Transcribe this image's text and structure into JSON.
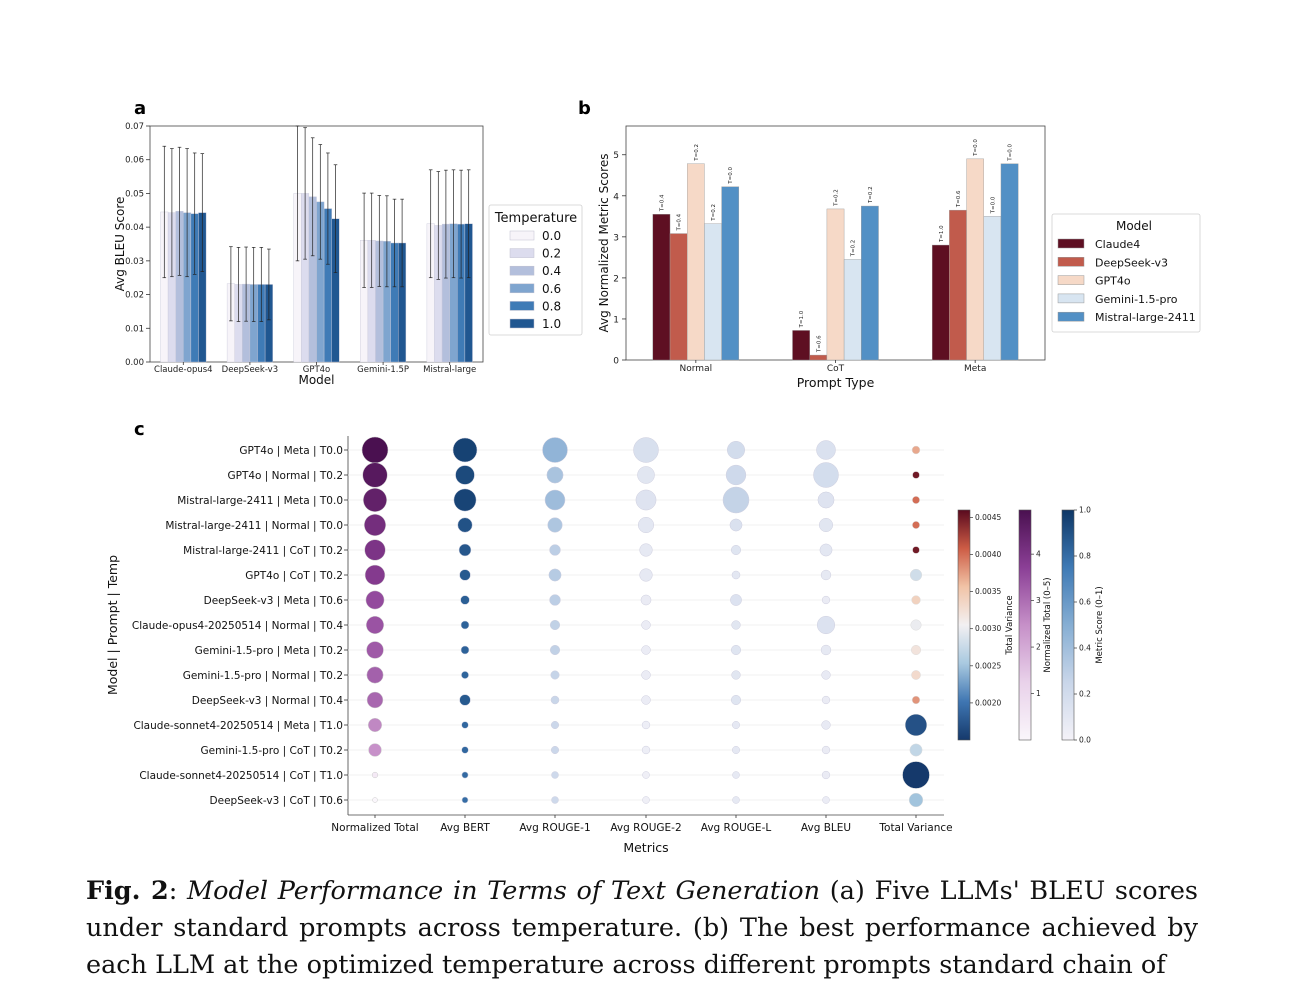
{
  "panel_labels": [
    "a",
    "b",
    "c"
  ],
  "caption": {
    "label": "Fig. 2",
    "title": "Model Performance in Terms of Text Generation",
    "text": "(a) Five LLMs' BLEU scores under standard prompts across temperature. (b) The best performance achieved by each LLM at the optimized temperature across different prompts standard chain of"
  },
  "chart_data": [
    {
      "type": "bar",
      "panel": "a",
      "xlabel": "Model",
      "ylabel": "Avg BLEU Score",
      "ylim": [
        0,
        0.07
      ],
      "yticks": [
        "0.00",
        "0.01",
        "0.02",
        "0.03",
        "0.04",
        "0.05",
        "0.06",
        "0.07"
      ],
      "categories": [
        "Claude-opus4",
        "DeepSeek-v3",
        "GPT4o",
        "Gemini-1.5P",
        "Mistral-large"
      ],
      "legend_title": "Temperature",
      "legend_position": "right",
      "series": [
        {
          "name": "0.0",
          "color": "#f7f4f9",
          "values": [
            0.0445,
            0.0232,
            0.05,
            0.0361,
            0.041
          ],
          "err": [
            0.0195,
            0.011,
            0.02,
            0.014,
            0.016
          ]
        },
        {
          "name": "0.2",
          "color": "#dcdcee",
          "values": [
            0.0443,
            0.023,
            0.05,
            0.0361,
            0.0405
          ],
          "err": [
            0.019,
            0.011,
            0.0195,
            0.014,
            0.016
          ]
        },
        {
          "name": "0.4",
          "color": "#b3bfdc",
          "values": [
            0.0447,
            0.0231,
            0.049,
            0.0359,
            0.0409
          ],
          "err": [
            0.019,
            0.011,
            0.0175,
            0.0135,
            0.016
          ]
        },
        {
          "name": "0.6",
          "color": "#7fa5cf",
          "values": [
            0.0443,
            0.023,
            0.0475,
            0.0358,
            0.041
          ],
          "err": [
            0.019,
            0.011,
            0.017,
            0.0135,
            0.016
          ]
        },
        {
          "name": "0.8",
          "color": "#3f7bb6",
          "values": [
            0.044,
            0.023,
            0.0455,
            0.0353,
            0.0409
          ],
          "err": [
            0.018,
            0.011,
            0.0165,
            0.013,
            0.016
          ]
        },
        {
          "name": "1.0",
          "color": "#205791",
          "values": [
            0.0443,
            0.023,
            0.0425,
            0.0353,
            0.041
          ],
          "err": [
            0.0175,
            0.0105,
            0.016,
            0.013,
            0.016
          ]
        }
      ]
    },
    {
      "type": "bar",
      "panel": "b",
      "xlabel": "Prompt Type",
      "ylabel": "Avg Normalized Metric Scores",
      "ylim": [
        0,
        5.7
      ],
      "yticks": [
        "0",
        "1",
        "2",
        "3",
        "4",
        "5"
      ],
      "categories": [
        "Normal",
        "CoT",
        "Meta"
      ],
      "legend_title": "Model",
      "legend_position": "right",
      "series": [
        {
          "name": "Claude4",
          "color": "#5e0f22",
          "values": [
            3.55,
            0.72,
            2.8
          ],
          "labels": [
            "T=0.4",
            "T=1.0",
            "T=1.0"
          ]
        },
        {
          "name": "DeepSeek-v3",
          "color": "#c15b4c",
          "values": [
            3.08,
            0.12,
            3.65
          ],
          "labels": [
            "T=0.4",
            "T=0.6",
            "T=0.6"
          ]
        },
        {
          "name": "GPT4o",
          "color": "#f6d9c7",
          "values": [
            4.78,
            3.68,
            4.9
          ],
          "labels": [
            "T=0.2",
            "T=0.2",
            "T=0.0"
          ]
        },
        {
          "name": "Gemini-1.5-pro",
          "color": "#d8e5f1",
          "values": [
            3.32,
            2.45,
            3.5
          ],
          "labels": [
            "T=0.2",
            "T=0.2",
            "T=0.0"
          ]
        },
        {
          "name": "Mistral-large-2411",
          "color": "#5290c5",
          "values": [
            4.22,
            3.75,
            4.78
          ],
          "labels": [
            "T=0.0",
            "T=0.2",
            "T=0.0"
          ]
        }
      ]
    },
    {
      "type": "scatter",
      "panel": "c",
      "xlabel": "Metrics",
      "ylabel": "Model | Prompt | Temp",
      "columns": [
        "Normalized Total",
        "Avg BERT",
        "Avg ROUGE-1",
        "Avg ROUGE-2",
        "Avg ROUGE-L",
        "Avg BLEU",
        "Total Variance"
      ],
      "rows": [
        "GPT4o | Meta | T0.0",
        "GPT4o | Normal | T0.2",
        "Mistral-large-2411 | Meta | T0.0",
        "Mistral-large-2411 | Normal | T0.0",
        "Mistral-large-2411 | CoT | T0.2",
        "GPT4o | CoT | T0.2",
        "DeepSeek-v3 | Meta | T0.6",
        "Claude-opus4-20250514 | Normal | T0.4",
        "Gemini-1.5-pro | Meta | T0.2",
        "Gemini-1.5-pro | Normal | T0.2",
        "DeepSeek-v3 | Normal | T0.4",
        "Claude-sonnet4-20250514 | Meta | T1.0",
        "Gemini-1.5-pro | CoT | T0.2",
        "Claude-sonnet4-20250514 | CoT | T1.0",
        "DeepSeek-v3 | CoT | T0.6"
      ],
      "normalized_total": [
        4.95,
        4.7,
        4.5,
        4.15,
        4.0,
        3.85,
        3.55,
        3.4,
        3.3,
        3.2,
        3.1,
        2.6,
        2.45,
        0.45,
        0.0
      ],
      "avg_bert": [
        0.96,
        0.93,
        0.95,
        0.9,
        0.88,
        0.87,
        0.85,
        0.84,
        0.84,
        0.83,
        0.87,
        0.82,
        0.82,
        0.81,
        0.8
      ],
      "avg_rouge1": [
        0.46,
        0.37,
        0.41,
        0.35,
        0.3,
        0.32,
        0.3,
        0.28,
        0.28,
        0.26,
        0.25,
        0.24,
        0.24,
        0.22,
        0.22
      ],
      "avg_rouge2": [
        0.16,
        0.11,
        0.13,
        0.1,
        0.08,
        0.08,
        0.06,
        0.05,
        0.05,
        0.05,
        0.05,
        0.04,
        0.04,
        0.03,
        0.03
      ],
      "avg_rougeL": [
        0.2,
        0.22,
        0.27,
        0.15,
        0.12,
        0.1,
        0.14,
        0.11,
        0.12,
        0.11,
        0.12,
        0.09,
        0.09,
        0.08,
        0.08
      ],
      "avg_bleu": [
        0.15,
        0.19,
        0.13,
        0.11,
        0.1,
        0.08,
        0.06,
        0.14,
        0.08,
        0.07,
        0.06,
        0.07,
        0.06,
        0.06,
        0.05
      ],
      "total_variance": [
        0.0037,
        0.0045,
        0.004,
        0.004,
        0.0045,
        0.0028,
        0.0034,
        0.003,
        0.0032,
        0.0033,
        0.0038,
        0.0017,
        0.0027,
        0.0013,
        0.0025
      ],
      "colorbars": [
        {
          "label": "Total Variance",
          "range": [
            0.0015,
            0.0046
          ],
          "ticks": [
            "0.0020",
            "0.0025",
            "0.0030",
            "0.0035",
            "0.0040",
            "0.0045"
          ]
        },
        {
          "label": "Normalized Total (0–5)",
          "range": [
            0,
            4.95
          ],
          "ticks": [
            "1",
            "2",
            "3",
            "4"
          ]
        },
        {
          "label": "Metric Score (0–1)",
          "range": [
            0,
            1
          ],
          "ticks": [
            "0.0",
            "0.2",
            "0.4",
            "0.6",
            "0.8",
            "1.0"
          ]
        }
      ]
    }
  ]
}
